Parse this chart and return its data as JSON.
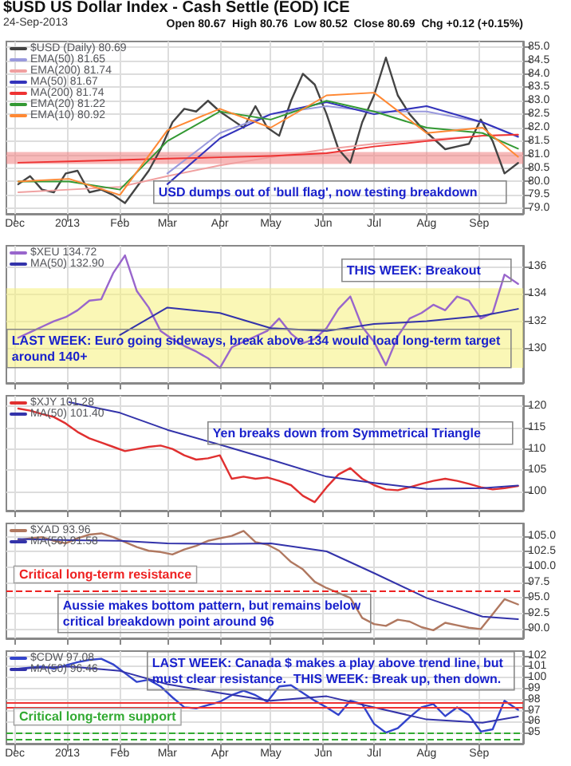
{
  "chart_data": [
    {
      "type": "line",
      "title": "$USD US Dollar Index - Cash Settle (EOD) ICE",
      "subtitle": "24-Sep-2013",
      "annotations": [
        "Open 80.67  High 80.76  Low 80.52  Close 80.69  Chg +0.12 (+0.15%)",
        "USD dumps out of 'bull flag', now testing breakdown"
      ],
      "x": [
        "2012-12-03",
        "2012-12-10",
        "2012-12-17",
        "2012-12-24",
        "2012-12-31",
        "2013-01-07",
        "2013-01-14",
        "2013-01-21",
        "2013-01-28",
        "2013-02-04",
        "2013-02-11",
        "2013-02-18",
        "2013-02-25",
        "2013-03-04",
        "2013-03-11",
        "2013-03-18",
        "2013-03-25",
        "2013-04-01",
        "2013-04-08",
        "2013-04-15",
        "2013-04-22",
        "2013-04-29",
        "2013-05-06",
        "2013-05-13",
        "2013-05-20",
        "2013-05-27",
        "2013-06-03",
        "2013-06-10",
        "2013-06-17",
        "2013-06-24",
        "2013-07-01",
        "2013-07-08",
        "2013-07-15",
        "2013-07-22",
        "2013-07-29",
        "2013-08-05",
        "2013-08-12",
        "2013-08-19",
        "2013-08-26",
        "2013-09-02",
        "2013-09-09",
        "2013-09-16",
        "2013-09-24"
      ],
      "series": [
        {
          "name": "$USD (Daily) 80.69",
          "color": "#444444",
          "values": [
            79.9,
            80.2,
            79.7,
            79.6,
            80.3,
            80.4,
            79.6,
            79.7,
            79.5,
            79.2,
            79.8,
            80.4,
            81.2,
            82.2,
            82.7,
            82.6,
            83.0,
            82.6,
            82.3,
            82.0,
            82.8,
            82.0,
            81.7,
            83.0,
            84.0,
            83.6,
            82.5,
            81.2,
            80.7,
            82.2,
            83.2,
            84.6,
            83.2,
            82.5,
            82.0,
            81.6,
            81.2,
            81.3,
            81.4,
            82.3,
            81.5,
            80.3,
            80.69
          ]
        },
        {
          "name": "EMA(50) 81.65",
          "color": "#9999dd",
          "x": [
            "2013-03-01",
            "2013-04-01",
            "2013-05-01",
            "2013-06-03",
            "2013-07-01",
            "2013-08-01",
            "2013-09-03",
            "2013-09-24"
          ],
          "values": [
            80.3,
            81.8,
            82.5,
            82.8,
            82.6,
            82.6,
            82.2,
            81.65
          ]
        },
        {
          "name": "EMA(200) 81.74",
          "color": "#f0a0a0",
          "x": [
            "2012-12-03",
            "2013-01-02",
            "2013-02-01",
            "2013-03-01",
            "2013-04-01",
            "2013-05-01",
            "2013-06-03",
            "2013-07-01",
            "2013-08-01",
            "2013-09-03",
            "2013-09-24"
          ],
          "values": [
            79.6,
            79.7,
            79.8,
            80.2,
            80.6,
            80.9,
            81.2,
            81.4,
            81.55,
            81.7,
            81.74
          ]
        },
        {
          "name": "MA(50) 81.67",
          "color": "#3333bb",
          "x": [
            "2013-03-01",
            "2013-04-01",
            "2013-05-01",
            "2013-06-03",
            "2013-07-01",
            "2013-08-01",
            "2013-09-03",
            "2013-09-24"
          ],
          "values": [
            79.9,
            81.6,
            82.5,
            82.95,
            82.5,
            82.8,
            82.2,
            81.67
          ]
        },
        {
          "name": "MA(200) 81.74",
          "color": "#ee3333",
          "x": [
            "2012-12-03",
            "2013-01-02",
            "2013-02-01",
            "2013-03-01",
            "2013-04-01",
            "2013-05-01",
            "2013-06-03",
            "2013-07-01",
            "2013-08-01",
            "2013-09-03",
            "2013-09-24"
          ],
          "values": [
            80.7,
            80.75,
            80.8,
            80.85,
            80.9,
            80.95,
            81.05,
            81.3,
            81.5,
            81.7,
            81.74
          ]
        },
        {
          "name": "EMA(20) 81.22",
          "color": "#339933",
          "x": [
            "2012-12-03",
            "2013-01-02",
            "2013-02-01",
            "2013-03-01",
            "2013-04-01",
            "2013-05-01",
            "2013-06-03",
            "2013-07-01",
            "2013-08-01",
            "2013-09-03",
            "2013-09-24"
          ],
          "values": [
            80.0,
            80.0,
            79.7,
            81.5,
            82.6,
            82.3,
            83.0,
            82.6,
            82.0,
            81.8,
            81.22
          ]
        },
        {
          "name": "EMA(10) 80.92",
          "color": "#ff8833",
          "x": [
            "2012-12-03",
            "2013-01-02",
            "2013-02-01",
            "2013-03-01",
            "2013-04-01",
            "2013-05-01",
            "2013-06-03",
            "2013-07-01",
            "2013-08-01",
            "2013-09-03",
            "2013-09-24"
          ],
          "values": [
            80.0,
            80.1,
            79.5,
            81.9,
            82.7,
            82.0,
            83.2,
            83.3,
            81.8,
            82.0,
            80.92
          ]
        }
      ],
      "xlim": [
        "2012-11-26",
        "2013-09-27"
      ],
      "xticks": [
        {
          "value": "2012-12-01",
          "label": "Dec"
        },
        {
          "value": "2013-01-01",
          "label": "2013"
        },
        {
          "value": "2013-02-01",
          "label": "Feb"
        },
        {
          "value": "2013-03-01",
          "label": "Mar"
        },
        {
          "value": "2013-04-01",
          "label": "Apr"
        },
        {
          "value": "2013-05-01",
          "label": "May"
        },
        {
          "value": "2013-06-01",
          "label": "Jun"
        },
        {
          "value": "2013-07-01",
          "label": "Jul"
        },
        {
          "value": "2013-08-01",
          "label": "Aug"
        },
        {
          "value": "2013-09-01",
          "label": "Sep"
        }
      ],
      "ylim": [
        78.8,
        85.2
      ],
      "yticks": [
        {
          "value": 79,
          "label": "79.0"
        },
        {
          "value": 79.5,
          "label": "79.5"
        },
        {
          "value": 80,
          "label": "80.0"
        },
        {
          "value": 80.5,
          "label": "80.5"
        },
        {
          "value": 81,
          "label": "81.0"
        },
        {
          "value": 81.5,
          "label": "81.5"
        },
        {
          "value": 82,
          "label": "82.0"
        },
        {
          "value": 82.5,
          "label": "82.5"
        },
        {
          "value": 83,
          "label": "83.0"
        },
        {
          "value": 83.5,
          "label": "83.5"
        },
        {
          "value": 84,
          "label": "84.0"
        },
        {
          "value": 84.5,
          "label": "84.5"
        },
        {
          "value": 85,
          "label": "85.0"
        }
      ],
      "bands": [
        {
          "axis": "y",
          "from": 80.65,
          "to": 81.1,
          "color": "#f08080"
        }
      ],
      "grid": true,
      "legend": "top left",
      "marker": "none",
      "line_style": "solid"
    },
    {
      "type": "line",
      "annotations": [
        "THIS WEEK: Breakout",
        "LAST WEEK: Euro going sideways, break above 134 would load long-term target around 140+"
      ],
      "x": [
        "2012-12-03",
        "2012-12-10",
        "2012-12-17",
        "2012-12-24",
        "2012-12-31",
        "2013-01-07",
        "2013-01-14",
        "2013-01-21",
        "2013-01-28",
        "2013-02-04",
        "2013-02-11",
        "2013-02-18",
        "2013-02-25",
        "2013-03-04",
        "2013-03-11",
        "2013-03-18",
        "2013-03-25",
        "2013-04-01",
        "2013-04-08",
        "2013-04-15",
        "2013-04-22",
        "2013-04-29",
        "2013-05-06",
        "2013-05-13",
        "2013-05-20",
        "2013-05-27",
        "2013-06-03",
        "2013-06-10",
        "2013-06-17",
        "2013-06-24",
        "2013-07-01",
        "2013-07-08",
        "2013-07-15",
        "2013-07-22",
        "2013-07-29",
        "2013-08-05",
        "2013-08-12",
        "2013-08-19",
        "2013-08-26",
        "2013-09-02",
        "2013-09-09",
        "2013-09-16",
        "2013-09-24"
      ],
      "series": [
        {
          "name": "$XEU 134.72",
          "color": "#9966cc",
          "values": [
            130.8,
            131.2,
            131.6,
            132.0,
            132.3,
            132.8,
            133.5,
            133.6,
            135.5,
            136.8,
            134.2,
            133.0,
            131.3,
            130.7,
            130.2,
            129.8,
            129.3,
            128.6,
            130.1,
            130.5,
            130.9,
            131.3,
            132.2,
            131.1,
            130.4,
            130.7,
            131.5,
            132.9,
            133.8,
            131.6,
            130.5,
            128.8,
            130.9,
            132.2,
            132.6,
            133.2,
            132.8,
            133.8,
            133.5,
            132.2,
            132.6,
            135.4,
            134.72
          ]
        },
        {
          "name": "MA(50) 132.90",
          "color": "#3333aa",
          "x": [
            "2013-02-01",
            "2013-03-01",
            "2013-04-01",
            "2013-05-01",
            "2013-06-03",
            "2013-07-01",
            "2013-08-01",
            "2013-09-03",
            "2013-09-24"
          ],
          "values": [
            131.0,
            133.0,
            132.6,
            131.5,
            131.3,
            131.8,
            132.0,
            132.4,
            132.9
          ]
        }
      ],
      "xlim": [
        "2012-11-26",
        "2013-09-27"
      ],
      "xticks": [
        {
          "value": "2012-12-01",
          "label": "Dec"
        },
        {
          "value": "2013-01-01",
          "label": "2013"
        },
        {
          "value": "2013-02-01",
          "label": "Feb"
        },
        {
          "value": "2013-03-01",
          "label": "Mar"
        },
        {
          "value": "2013-04-01",
          "label": "Apr"
        },
        {
          "value": "2013-05-01",
          "label": "May"
        },
        {
          "value": "2013-06-01",
          "label": "Jun"
        },
        {
          "value": "2013-07-01",
          "label": "Jul"
        },
        {
          "value": "2013-08-01",
          "label": "Aug"
        },
        {
          "value": "2013-09-01",
          "label": "Sep"
        }
      ],
      "ylim": [
        127.5,
        137.5
      ],
      "yticks": [
        130,
        132,
        134,
        136
      ],
      "bands": [
        {
          "axis": "y",
          "from": 128.6,
          "to": 134.4,
          "color": "#f5f07a"
        }
      ],
      "grid": true,
      "legend": "top left",
      "marker": "none",
      "line_style": "solid",
      "tick_labels": "y"
    },
    {
      "type": "line",
      "annotations": [
        "Yen breaks down from Symmetrical Triangle"
      ],
      "x": [
        "2012-12-03",
        "2012-12-10",
        "2012-12-17",
        "2012-12-24",
        "2012-12-31",
        "2013-01-07",
        "2013-01-14",
        "2013-01-21",
        "2013-01-28",
        "2013-02-04",
        "2013-02-11",
        "2013-02-18",
        "2013-02-25",
        "2013-03-04",
        "2013-03-11",
        "2013-03-18",
        "2013-03-25",
        "2013-04-01",
        "2013-04-08",
        "2013-04-15",
        "2013-04-22",
        "2013-04-29",
        "2013-05-06",
        "2013-05-13",
        "2013-05-20",
        "2013-05-27",
        "2013-06-03",
        "2013-06-10",
        "2013-06-17",
        "2013-06-24",
        "2013-07-01",
        "2013-07-08",
        "2013-07-15",
        "2013-07-22",
        "2013-07-29",
        "2013-08-05",
        "2013-08-12",
        "2013-08-19",
        "2013-08-26",
        "2013-09-02",
        "2013-09-09",
        "2013-09-16",
        "2013-09-24"
      ],
      "series": [
        {
          "name": "$XJY 101.28",
          "color": "#e03030",
          "values": [
            119.5,
            119.0,
            118.2,
            117.5,
            116.0,
            114.0,
            112.5,
            111.5,
            110.5,
            109.5,
            110.0,
            110.5,
            110.8,
            110.0,
            108.5,
            107.5,
            107.8,
            108.5,
            103.0,
            103.5,
            103.0,
            103.3,
            102.5,
            101.5,
            99.0,
            97.5,
            101.0,
            104.0,
            105.5,
            103.0,
            101.5,
            100.5,
            100.3,
            101.0,
            101.8,
            102.5,
            103.0,
            102.5,
            101.8,
            101.0,
            100.5,
            100.8,
            101.28
          ]
        },
        {
          "name": "MA(50) 101.40",
          "color": "#3333aa",
          "x": [
            "2013-01-02",
            "2013-02-01",
            "2013-03-01",
            "2013-04-01",
            "2013-05-01",
            "2013-06-03",
            "2013-07-01",
            "2013-08-01",
            "2013-09-03",
            "2013-09-24"
          ],
          "values": [
            121.0,
            118.5,
            114.5,
            111.0,
            107.5,
            103.5,
            102.0,
            100.6,
            100.8,
            101.4
          ]
        }
      ],
      "xlim": [
        "2012-11-26",
        "2013-09-27"
      ],
      "xticks": [
        {
          "value": "2012-12-01",
          "label": "Dec"
        },
        {
          "value": "2013-01-01",
          "label": "2013"
        },
        {
          "value": "2013-02-01",
          "label": "Feb"
        },
        {
          "value": "2013-03-01",
          "label": "Mar"
        },
        {
          "value": "2013-04-01",
          "label": "Apr"
        },
        {
          "value": "2013-05-01",
          "label": "May"
        },
        {
          "value": "2013-06-01",
          "label": "Jun"
        },
        {
          "value": "2013-07-01",
          "label": "Jul"
        },
        {
          "value": "2013-08-01",
          "label": "Aug"
        },
        {
          "value": "2013-09-01",
          "label": "Sep"
        }
      ],
      "ylim": [
        95.5,
        122.5
      ],
      "yticks": [
        100,
        105,
        110,
        115,
        120
      ],
      "grid": true,
      "legend": "top left",
      "marker": "none",
      "line_style": "solid",
      "tick_labels": "y"
    },
    {
      "type": "line",
      "annotations": [
        "Aussie makes bottom pattern, but remains below critical breakdown point around 96"
      ],
      "x": [
        "2012-12-03",
        "2012-12-10",
        "2012-12-17",
        "2012-12-24",
        "2012-12-31",
        "2013-01-07",
        "2013-01-14",
        "2013-01-21",
        "2013-01-28",
        "2013-02-04",
        "2013-02-11",
        "2013-02-18",
        "2013-02-25",
        "2013-03-04",
        "2013-03-11",
        "2013-03-18",
        "2013-03-25",
        "2013-04-01",
        "2013-04-08",
        "2013-04-15",
        "2013-04-22",
        "2013-04-29",
        "2013-05-06",
        "2013-05-13",
        "2013-05-20",
        "2013-05-27",
        "2013-06-03",
        "2013-06-10",
        "2013-06-17",
        "2013-06-24",
        "2013-07-01",
        "2013-07-08",
        "2013-07-15",
        "2013-07-22",
        "2013-07-29",
        "2013-08-05",
        "2013-08-12",
        "2013-08-19",
        "2013-08-26",
        "2013-09-02",
        "2013-09-09",
        "2013-09-16",
        "2013-09-24"
      ],
      "series": [
        {
          "name": "$XAD 93.96",
          "color": "#b07860",
          "values": [
            104.3,
            104.6,
            104.8,
            104.2,
            103.8,
            104.6,
            105.2,
            105.4,
            104.8,
            104.0,
            103.2,
            102.6,
            102.4,
            102.0,
            102.8,
            103.4,
            104.2,
            104.6,
            105.0,
            105.8,
            104.0,
            103.6,
            102.6,
            100.8,
            99.6,
            97.6,
            96.6,
            95.8,
            95.0,
            91.8,
            90.8,
            90.5,
            91.5,
            91.2,
            90.3,
            89.8,
            91.0,
            90.6,
            90.2,
            90.0,
            92.4,
            94.8,
            93.96
          ]
        },
        {
          "name": "MA(50) 91.58",
          "color": "#3333aa",
          "x": [
            "2012-12-03",
            "2013-01-02",
            "2013-02-01",
            "2013-03-01",
            "2013-04-01",
            "2013-05-01",
            "2013-06-03",
            "2013-07-01",
            "2013-08-01",
            "2013-09-03",
            "2013-09-24"
          ],
          "values": [
            104.5,
            104.3,
            104.2,
            103.8,
            103.7,
            103.8,
            102.5,
            99.0,
            95.0,
            92.0,
            91.58
          ]
        }
      ],
      "xlim": [
        "2012-11-26",
        "2013-09-27"
      ],
      "xticks": [
        {
          "value": "2012-12-01",
          "label": "Dec"
        },
        {
          "value": "2013-01-01",
          "label": "2013"
        },
        {
          "value": "2013-02-01",
          "label": "Feb"
        },
        {
          "value": "2013-03-01",
          "label": "Mar"
        },
        {
          "value": "2013-04-01",
          "label": "Apr"
        },
        {
          "value": "2013-05-01",
          "label": "May"
        },
        {
          "value": "2013-06-01",
          "label": "Jun"
        },
        {
          "value": "2013-07-01",
          "label": "Jul"
        },
        {
          "value": "2013-08-01",
          "label": "Aug"
        },
        {
          "value": "2013-09-01",
          "label": "Sep"
        }
      ],
      "ylim": [
        88.5,
        107
      ],
      "yticks": [
        {
          "value": 90,
          "label": "90.0"
        },
        {
          "value": 92.5,
          "label": "92.5"
        },
        {
          "value": 95,
          "label": "95.0"
        },
        {
          "value": 97.5,
          "label": "97.5"
        },
        {
          "value": 100,
          "label": "100.0"
        },
        {
          "value": 102.5,
          "label": "102.5"
        },
        {
          "value": 105,
          "label": "105.0"
        }
      ],
      "ref_lines": [
        {
          "axis": "y",
          "value": 96.2,
          "label": "Critical long-term resistance",
          "color": "#ee2222",
          "line_style": "dashed"
        }
      ],
      "grid": true,
      "legend": "top left",
      "marker": "none",
      "line_style": "solid",
      "tick_labels": "y"
    },
    {
      "type": "line",
      "annotations": [
        "LAST WEEK: Canada $ makes a play above trend line, but must clear resistance.  THIS WEEK: Break up, then down."
      ],
      "x": [
        "2012-12-03",
        "2012-12-10",
        "2012-12-17",
        "2012-12-24",
        "2012-12-31",
        "2013-01-07",
        "2013-01-14",
        "2013-01-21",
        "2013-01-28",
        "2013-02-04",
        "2013-02-11",
        "2013-02-18",
        "2013-02-25",
        "2013-03-04",
        "2013-03-11",
        "2013-03-18",
        "2013-03-25",
        "2013-04-01",
        "2013-04-08",
        "2013-04-15",
        "2013-04-22",
        "2013-04-29",
        "2013-05-06",
        "2013-05-13",
        "2013-05-20",
        "2013-05-27",
        "2013-06-03",
        "2013-06-10",
        "2013-06-17",
        "2013-06-24",
        "2013-07-01",
        "2013-07-08",
        "2013-07-15",
        "2013-07-22",
        "2013-07-29",
        "2013-08-05",
        "2013-08-12",
        "2013-08-19",
        "2013-08-26",
        "2013-09-02",
        "2013-09-09",
        "2013-09-16",
        "2013-09-24"
      ],
      "series": [
        {
          "name": "$CDW 97.08",
          "color": "#3344cc",
          "values": [
            100.8,
            100.9,
            101.0,
            100.8,
            101.1,
            101.4,
            101.6,
            101.7,
            101.2,
            100.4,
            99.6,
            99.8,
            99.2,
            98.2,
            97.3,
            97.2,
            97.5,
            97.8,
            98.4,
            98.8,
            98.4,
            97.8,
            99.2,
            99.3,
            98.6,
            97.9,
            97.3,
            96.6,
            97.9,
            97.6,
            95.8,
            95.0,
            95.4,
            96.4,
            97.3,
            97.6,
            96.5,
            97.3,
            96.6,
            95.1,
            95.3,
            97.9,
            97.08
          ]
        },
        {
          "name": "MA(50) 96.46",
          "color": "#3333aa",
          "x": [
            "2012-12-03",
            "2013-01-02",
            "2013-02-01",
            "2013-03-01",
            "2013-04-01",
            "2013-05-01",
            "2013-06-03",
            "2013-07-01",
            "2013-08-01",
            "2013-09-03",
            "2013-09-24"
          ],
          "values": [
            100.8,
            101.0,
            100.6,
            99.4,
            98.6,
            97.9,
            98.3,
            97.3,
            96.2,
            95.9,
            96.46
          ]
        }
      ],
      "xlim": [
        "2012-11-26",
        "2013-09-27"
      ],
      "xticks": [
        {
          "value": "2012-12-01",
          "label": "Dec"
        },
        {
          "value": "2013-01-01",
          "label": "2013"
        },
        {
          "value": "2013-02-01",
          "label": "Feb"
        },
        {
          "value": "2013-03-01",
          "label": "Mar"
        },
        {
          "value": "2013-04-01",
          "label": "Apr"
        },
        {
          "value": "2013-05-01",
          "label": "May"
        },
        {
          "value": "2013-06-01",
          "label": "Jun"
        },
        {
          "value": "2013-07-01",
          "label": "Jul"
        },
        {
          "value": "2013-08-01",
          "label": "Aug"
        },
        {
          "value": "2013-09-01",
          "label": "Sep"
        }
      ],
      "ylim": [
        94.0,
        102.4
      ],
      "yticks": [
        95,
        96,
        97,
        98,
        99,
        100,
        101,
        102
      ],
      "ref_lines": [
        {
          "axis": "y",
          "value": 97.7,
          "color": "#ee3333",
          "line_style": "solid"
        },
        {
          "axis": "y",
          "value": 97.3,
          "color": "#ee3333",
          "line_style": "solid"
        },
        {
          "axis": "y",
          "value": 95.0,
          "label": "Critical long-term support",
          "color": "#33aa33",
          "line_style": "dashed"
        },
        {
          "axis": "y",
          "value": 94.4,
          "color": "#33aa33",
          "line_style": "dashed"
        }
      ],
      "grid": true,
      "legend": "top left",
      "marker": "none",
      "line_style": "solid"
    }
  ]
}
